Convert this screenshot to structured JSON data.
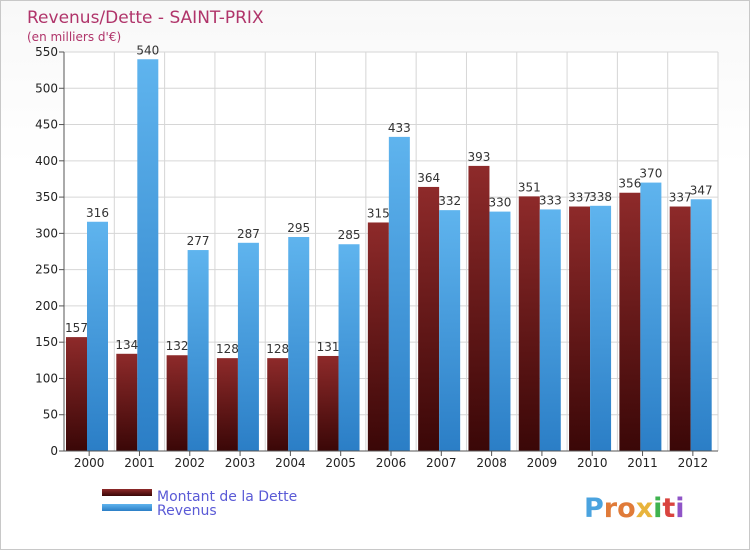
{
  "chart_data": {
    "type": "bar",
    "title": "Revenus/Dette - SAINT-PRIX",
    "subtitle": "(en milliers d'€)",
    "xlabel": "",
    "ylabel": "",
    "categories": [
      "2000",
      "2001",
      "2002",
      "2003",
      "2004",
      "2005",
      "2006",
      "2007",
      "2008",
      "2009",
      "2010",
      "2011",
      "2012"
    ],
    "series": [
      {
        "name": "Montant de la Dette",
        "color": "#8b1a1a",
        "values": [
          157,
          134,
          132,
          128,
          128,
          131,
          315,
          364,
          393,
          351,
          337,
          356,
          337
        ]
      },
      {
        "name": "Revenus",
        "color": "#4da6e8",
        "values": [
          316,
          540,
          277,
          287,
          295,
          285,
          433,
          332,
          330,
          333,
          338,
          370,
          347
        ]
      }
    ],
    "ylim": [
      0,
      550
    ],
    "yticks": [
      0,
      50,
      100,
      150,
      200,
      250,
      300,
      350,
      400,
      450,
      500,
      550
    ],
    "grid": true,
    "legend_position": "bottom-left",
    "data_labels": true
  },
  "brand": {
    "letters": [
      "P",
      "r",
      "o",
      "x",
      "i",
      "t",
      "i"
    ],
    "colors": [
      "#4aa3df",
      "#e07b39",
      "#e07b39",
      "#e8b43c",
      "#3fb34f",
      "#d9443f",
      "#8f54c7"
    ]
  }
}
